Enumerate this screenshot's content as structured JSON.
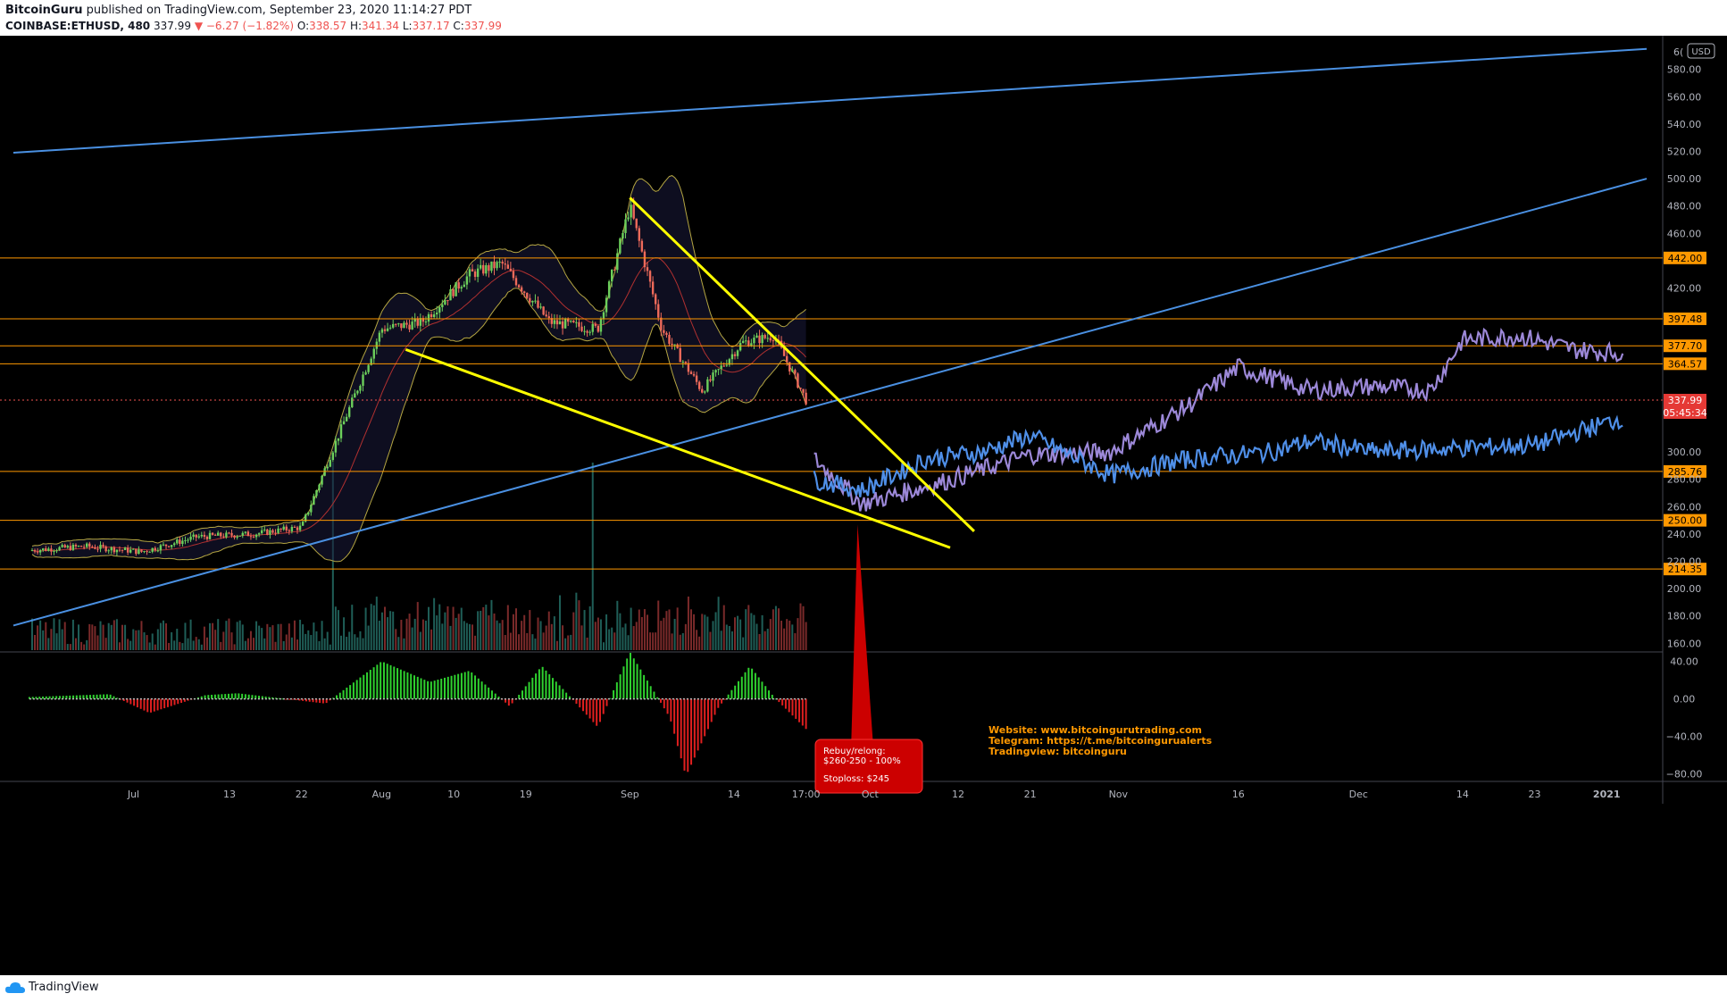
{
  "header": {
    "author": "BitcoinGuru",
    "published_text": "published on TradingView.com, September 23, 2020 11:14:27 PDT",
    "symbol": "COINBASE:ETHUSD, 480",
    "last": "337.99",
    "change": "−6.27 (−1.82%)",
    "o_label": "O:",
    "o_value": "338.57",
    "h_label": "H:",
    "h_value": "341.34",
    "l_label": "L:",
    "l_value": "337.17",
    "c_label": "C:",
    "c_value": "337.99"
  },
  "footer": {
    "brand": "TradingView"
  },
  "colors": {
    "background": "#000000",
    "bull": "#26a69a",
    "bear": "#ef5350",
    "level_line": "#ff9800",
    "trend_blue": "#4a90e2",
    "wedge_yellow": "#ffff00",
    "projection_purple": "#9c88d8",
    "projection_blue": "#4f8fe8",
    "annotation_red": "#cc0000",
    "text_orange": "#ff9800"
  },
  "chart_data": {
    "type": "line",
    "symbol": "COINBASE:ETHUSD",
    "interval": "480",
    "currency": "USD",
    "ylim": [
      155,
      602
    ],
    "y_ticks": [
      "580.00",
      "560.00",
      "540.00",
      "520.00",
      "500.00",
      "480.00",
      "460.00",
      "420.00",
      "300.00",
      "280.00",
      "260.00",
      "240.00",
      "220.00",
      "200.00",
      "180.00",
      "160.00"
    ],
    "x_ticks": [
      "Jul",
      "13",
      "22",
      "Aug",
      "10",
      "19",
      "Sep",
      "14",
      "17:00",
      "Oct",
      "12",
      "21",
      "Nov",
      "16",
      "Dec",
      "14",
      "23",
      "2021"
    ],
    "horizontal_levels": [
      "442.00",
      "397.48",
      "377.70",
      "364.57",
      "285.76",
      "250.00",
      "214.35"
    ],
    "current_price": {
      "value": "337.99",
      "countdown": "05:45:34"
    },
    "price_series": {
      "name": "",
      "x": [
        "2020-06-18",
        "2020-06-25",
        "2020-07-02",
        "2020-07-09",
        "2020-07-16",
        "2020-07-22",
        "2020-07-27",
        "2020-08-01",
        "2020-08-06",
        "2020-08-12",
        "2020-08-16",
        "2020-08-22",
        "2020-08-28",
        "2020-09-01",
        "2020-09-05",
        "2020-09-10",
        "2020-09-15",
        "2020-09-19",
        "2020-09-23"
      ],
      "values": [
        228,
        231,
        227,
        238,
        240,
        245,
        318,
        390,
        395,
        430,
        438,
        395,
        390,
        480,
        390,
        345,
        380,
        385,
        338
      ]
    },
    "projection_purple": {
      "name": "",
      "x": [
        "2020-09-24",
        "2020-09-30",
        "2020-10-10",
        "2020-10-21",
        "2020-10-31",
        "2020-11-10",
        "2020-11-16",
        "2020-11-25",
        "2020-12-03",
        "2020-12-10",
        "2020-12-14",
        "2020-12-21",
        "2020-12-28",
        "2021-01-03"
      ],
      "values": [
        295,
        262,
        278,
        298,
        300,
        335,
        362,
        345,
        348,
        345,
        382,
        385,
        375,
        372
      ]
    },
    "projection_blue": {
      "name": "",
      "x": [
        "2020-09-24",
        "2020-09-30",
        "2020-10-08",
        "2020-10-15",
        "2020-10-21",
        "2020-10-31",
        "2020-11-10",
        "2020-11-20",
        "2020-11-25",
        "2020-12-03",
        "2020-12-14",
        "2020-12-23",
        "2021-01-03"
      ],
      "values": [
        280,
        272,
        295,
        300,
        312,
        283,
        295,
        300,
        308,
        300,
        303,
        305,
        325
      ]
    },
    "trend_lines": [
      {
        "type": "trendline",
        "x": [
          "2020-06-16",
          "2021-01-06"
        ],
        "y": [
          519,
          595
        ]
      },
      {
        "type": "trendline",
        "x": [
          "2020-06-16",
          "2021-01-06"
        ],
        "y": [
          173,
          500
        ]
      }
    ],
    "wedge_lines": [
      {
        "type": "trendline",
        "x": [
          "2020-09-01",
          "2020-10-14"
        ],
        "y": [
          486,
          242
        ]
      },
      {
        "type": "trendline",
        "x": [
          "2020-08-04",
          "2020-10-11"
        ],
        "y": [
          375,
          230
        ]
      }
    ],
    "macd": {
      "ylim": [
        -85,
        50
      ],
      "y_ticks": [
        "40.00",
        "0.00",
        "−40.00",
        "−80.00"
      ],
      "x": [
        "2020-06-18",
        "2020-06-28",
        "2020-07-03",
        "2020-07-10",
        "2020-07-14",
        "2020-07-25",
        "2020-08-01",
        "2020-08-07",
        "2020-08-12",
        "2020-08-17",
        "2020-08-21",
        "2020-08-28",
        "2020-09-01",
        "2020-09-06",
        "2020-09-08",
        "2020-09-12",
        "2020-09-16",
        "2020-09-19",
        "2020-09-23"
      ],
      "values": [
        2,
        5,
        -15,
        4,
        6,
        -5,
        40,
        18,
        30,
        -8,
        35,
        -30,
        50,
        -20,
        -82,
        -10,
        35,
        2,
        -32
      ]
    },
    "annotations": {
      "rebuy_title": "Rebuy/relong:",
      "rebuy_range": "$260-250 - 100%",
      "stoploss": "Stoploss: $245",
      "website": "Website: www.bitcoingurutrading.com",
      "telegram": "Telegram: https://t.me/bitcoingurualerts",
      "tradingview": "Tradingview: bitcoinguru"
    }
  }
}
